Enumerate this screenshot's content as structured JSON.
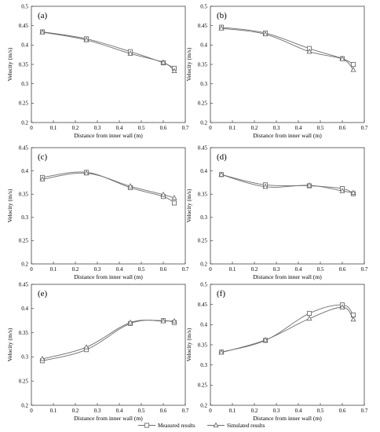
{
  "legend": {
    "items": [
      {
        "label": "Measured results",
        "marker": "square"
      },
      {
        "label": "Simulated results",
        "marker": "triangle"
      }
    ]
  },
  "colors": {
    "series": "#6e6e6e",
    "axis": "#444444",
    "text": "#000000"
  },
  "chart_data": [
    {
      "type": "line",
      "panel": "(a)",
      "xlabel": "Distance from inner wall (m)",
      "ylabel": "Velocity (m/s)",
      "xlim": [
        0,
        0.7
      ],
      "ylim": [
        0.2,
        0.5
      ],
      "xticks": [
        "0",
        "0.1",
        "0.2",
        "0.3",
        "0.4",
        "0.5",
        "0.6",
        "0.7"
      ],
      "yticks": [
        "0.2",
        "0.25",
        "0.3",
        "0.35",
        "0.4",
        "0.45",
        "0.5"
      ],
      "x": [
        0.05,
        0.25,
        0.45,
        0.6,
        0.65
      ],
      "series": [
        {
          "name": "Measured results",
          "marker": "square",
          "values": [
            0.434,
            0.416,
            0.383,
            0.354,
            0.34
          ]
        },
        {
          "name": "Simulated results",
          "marker": "triangle",
          "values": [
            0.433,
            0.413,
            0.378,
            0.355,
            0.333
          ]
        }
      ]
    },
    {
      "type": "line",
      "panel": "(b)",
      "xlabel": "Distance from inner wall (m)",
      "ylabel": "Velocity (m/s)",
      "xlim": [
        0,
        0.7
      ],
      "ylim": [
        0.2,
        0.5
      ],
      "xticks": [
        "0",
        "0.1",
        "0.2",
        "0.3",
        "0.4",
        "0.5",
        "0.6",
        "0.7"
      ],
      "yticks": [
        "0.2",
        "0.25",
        "0.3",
        "0.35",
        "0.4",
        "0.45",
        "0.5"
      ],
      "x": [
        0.05,
        0.25,
        0.45,
        0.6,
        0.65
      ],
      "series": [
        {
          "name": "Measured results",
          "marker": "square",
          "values": [
            0.446,
            0.431,
            0.391,
            0.365,
            0.35
          ]
        },
        {
          "name": "Simulated results",
          "marker": "triangle",
          "values": [
            0.443,
            0.428,
            0.383,
            0.364,
            0.336
          ]
        }
      ]
    },
    {
      "type": "line",
      "panel": "(c)",
      "xlabel": "Distance from inner wall (m)",
      "ylabel": "Velocity (m/s)",
      "xlim": [
        0,
        0.7
      ],
      "ylim": [
        0.2,
        0.45
      ],
      "xticks": [
        "0",
        "0.1",
        "0.2",
        "0.3",
        "0.4",
        "0.5",
        "0.6",
        "0.7"
      ],
      "yticks": [
        "0.2",
        "0.25",
        "0.3",
        "0.35",
        "0.4",
        "0.45"
      ],
      "x": [
        0.05,
        0.25,
        0.45,
        0.6,
        0.65
      ],
      "series": [
        {
          "name": "Measured results",
          "marker": "square",
          "values": [
            0.386,
            0.397,
            0.364,
            0.345,
            0.331
          ]
        },
        {
          "name": "Simulated results",
          "marker": "triangle",
          "values": [
            0.382,
            0.395,
            0.367,
            0.349,
            0.342
          ]
        }
      ]
    },
    {
      "type": "line",
      "panel": "(d)",
      "xlabel": "Distance from inner wall (m)",
      "ylabel": "Velocity (m/s)",
      "xlim": [
        0,
        0.7
      ],
      "ylim": [
        0.2,
        0.45
      ],
      "xticks": [
        "0",
        "0.1",
        "0.2",
        "0.3",
        "0.4",
        "0.5",
        "0.6",
        "0.7"
      ],
      "yticks": [
        "0.2",
        "0.25",
        "0.3",
        "0.35",
        "0.4",
        "0.45"
      ],
      "x": [
        0.05,
        0.25,
        0.45,
        0.6,
        0.65
      ],
      "series": [
        {
          "name": "Measured results",
          "marker": "square",
          "values": [
            0.392,
            0.37,
            0.368,
            0.362,
            0.351
          ]
        },
        {
          "name": "Simulated results",
          "marker": "triangle",
          "values": [
            0.392,
            0.366,
            0.369,
            0.357,
            0.353
          ]
        }
      ]
    },
    {
      "type": "line",
      "panel": "(e)",
      "xlabel": "Distance from inner wall (m)",
      "ylabel": "Velocity (m/s)",
      "xlim": [
        0,
        0.7
      ],
      "ylim": [
        0.2,
        0.45
      ],
      "xticks": [
        "0",
        "0.1",
        "0.2",
        "0.3",
        "0.4",
        "0.5",
        "0.6",
        "0.7"
      ],
      "yticks": [
        "0.2",
        "0.25",
        "0.3",
        "0.35",
        "0.4",
        "0.45"
      ],
      "x": [
        0.05,
        0.25,
        0.45,
        0.6,
        0.65
      ],
      "series": [
        {
          "name": "Measured results",
          "marker": "square",
          "values": [
            0.292,
            0.315,
            0.369,
            0.375,
            0.371
          ]
        },
        {
          "name": "Simulated results",
          "marker": "triangle",
          "values": [
            0.296,
            0.32,
            0.371,
            0.374,
            0.374
          ]
        }
      ]
    },
    {
      "type": "line",
      "panel": "(f)",
      "xlabel": "Distance from inner wall (m)",
      "ylabel": "Velocity (m/s)",
      "xlim": [
        0,
        0.7
      ],
      "ylim": [
        0.2,
        0.5
      ],
      "xticks": [
        "0",
        "0.1",
        "0.2",
        "0.3",
        "0.4",
        "0.5",
        "0.6",
        "0.7"
      ],
      "yticks": [
        "0.2",
        "0.25",
        "0.3",
        "0.35",
        "0.4",
        "0.45",
        "0.5"
      ],
      "x": [
        0.05,
        0.25,
        0.45,
        0.6,
        0.65
      ],
      "series": [
        {
          "name": "Measured results",
          "marker": "square",
          "values": [
            0.332,
            0.361,
            0.428,
            0.449,
            0.424
          ]
        },
        {
          "name": "Simulated results",
          "marker": "triangle",
          "values": [
            0.331,
            0.362,
            0.415,
            0.443,
            0.413
          ]
        }
      ]
    }
  ]
}
